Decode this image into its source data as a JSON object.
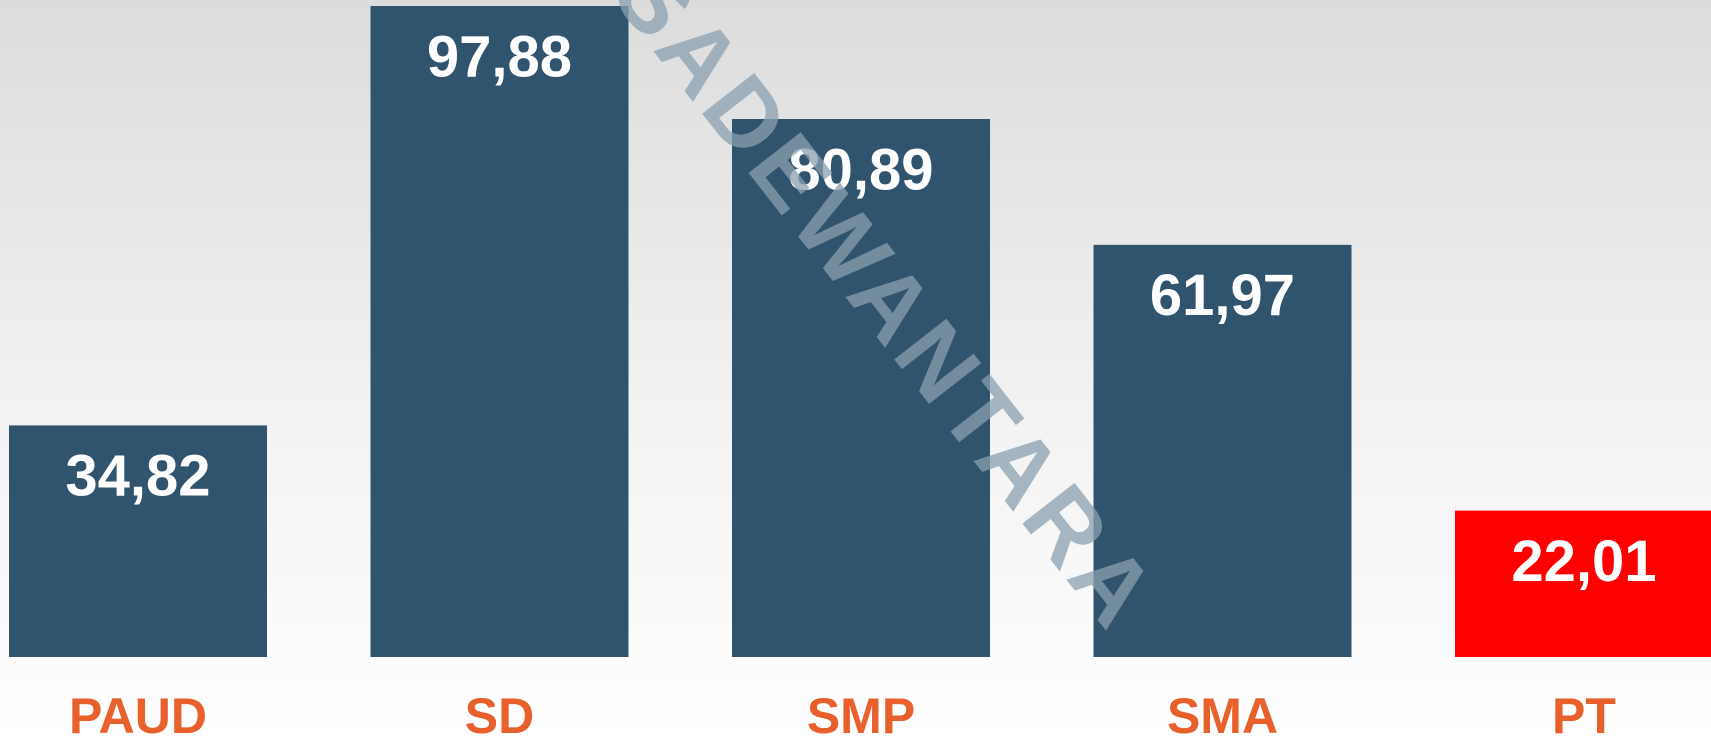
{
  "chart_data": {
    "type": "bar",
    "categories": [
      "PAUD",
      "SD",
      "SMP",
      "SMA",
      "PT"
    ],
    "values": [
      34.82,
      97.88,
      80.89,
      61.97,
      22.01
    ],
    "value_labels": [
      "34,82",
      "97,88",
      "80,89",
      "61,97",
      "22,01"
    ],
    "colors": [
      "#31546e",
      "#31546e",
      "#31546e",
      "#31546e",
      "#ff0000"
    ],
    "watermark": "SADEWANTARA"
  }
}
